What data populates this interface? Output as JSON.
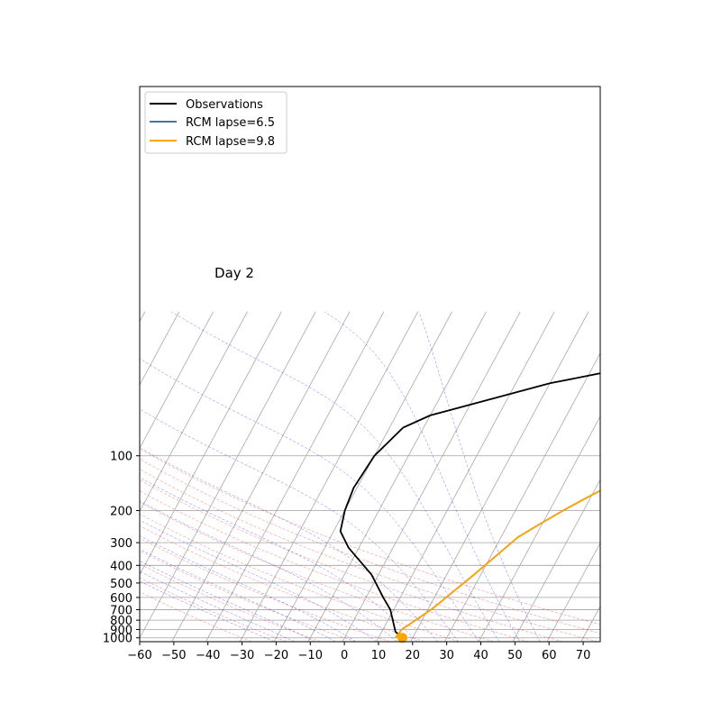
{
  "chart_data": {
    "type": "line",
    "subtype": "skew-T log-P diagram",
    "title": "",
    "annotation": "Day 2",
    "xlabel": "",
    "ylabel": "",
    "xlim": [
      -60,
      75
    ],
    "ylim": [
      1000,
      30
    ],
    "y_scale": "log",
    "grid": true,
    "legend_position": "top-left",
    "x_ticks": [
      "−60",
      "−50",
      "−40",
      "−30",
      "−20",
      "−10",
      "0",
      "10",
      "20",
      "30",
      "40",
      "50",
      "60",
      "70"
    ],
    "x_tick_values": [
      -60,
      -50,
      -40,
      -30,
      -20,
      -10,
      0,
      10,
      20,
      30,
      40,
      50,
      60,
      70
    ],
    "y_ticks": [
      "100",
      "200",
      "300",
      "400",
      "500",
      "600",
      "700",
      "800",
      "900",
      "1000"
    ],
    "y_tick_values": [
      100,
      200,
      300,
      400,
      500,
      600,
      700,
      800,
      900,
      1000
    ],
    "colors": {
      "observations": "#000000",
      "rcm_65": "#4c72a0",
      "rcm_98": "#ffa500",
      "dry_adiabat": "#ff0000",
      "moist_adiabat": "#0000ff",
      "isotherm": "#808080"
    },
    "series": [
      {
        "name": "Observations",
        "color": "#000000",
        "points": [
          [
            17,
            1000
          ],
          [
            14,
            925
          ],
          [
            9,
            700
          ],
          [
            5,
            600
          ],
          [
            -2,
            450
          ],
          [
            -13,
            320
          ],
          [
            -18,
            260
          ],
          [
            -20,
            200
          ],
          [
            -21,
            150
          ],
          [
            -20,
            100
          ],
          [
            -16,
            70
          ],
          [
            -10,
            60
          ],
          [
            20,
            40
          ],
          [
            50,
            30
          ]
        ]
      },
      {
        "name": "RCM lapse=6.5",
        "color": "#4c72a0",
        "points": [
          [
            15,
            1000
          ],
          [
            15.5,
            900
          ],
          [
            21,
            700
          ],
          [
            28,
            450
          ],
          [
            35,
            280
          ],
          [
            39,
            240
          ],
          [
            44,
            200
          ],
          [
            48,
            175
          ],
          [
            55,
            140
          ],
          [
            60,
            115
          ],
          [
            65,
            90
          ],
          [
            72,
            60
          ],
          [
            80,
            45
          ]
        ]
      },
      {
        "name": "RCM lapse=9.8",
        "color": "#ffa500",
        "points": [
          [
            15,
            1000
          ],
          [
            15.5,
            900
          ],
          [
            21,
            700
          ],
          [
            28,
            450
          ],
          [
            35,
            280
          ],
          [
            39,
            240
          ],
          [
            44,
            200
          ],
          [
            48,
            175
          ],
          [
            55,
            140
          ],
          [
            60,
            115
          ],
          [
            65,
            90
          ],
          [
            72,
            60
          ],
          [
            80,
            45
          ]
        ]
      }
    ],
    "surface_marker": {
      "x": 17,
      "y": 1000,
      "color": "#ffa500"
    }
  },
  "legend": {
    "items": [
      {
        "label": "Observations",
        "color": "#000000"
      },
      {
        "label": "RCM lapse=6.5",
        "color": "#4c72a0"
      },
      {
        "label": "RCM lapse=9.8",
        "color": "#ffa500"
      }
    ]
  }
}
